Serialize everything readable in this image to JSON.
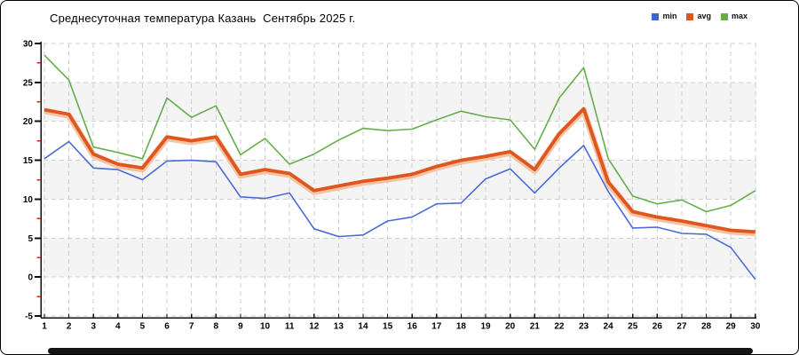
{
  "title": "Среднесуточная температура Казань  Сентябрь 2025 г.",
  "legend": {
    "items": [
      {
        "label": "min",
        "color": "#3d63d6"
      },
      {
        "label": "avg",
        "color": "#e0561f"
      },
      {
        "label": "max",
        "color": "#64ad49"
      }
    ]
  },
  "colors": {
    "min_line": "#4a6bd5",
    "avg_line": "#e0561f",
    "avg_halo": "#f3c3a3",
    "max_line": "#66ae4a",
    "band_fill": "#f4f4f4",
    "gridline": "#cfcfcf",
    "axis": "#111111",
    "minor_tick": "#cc2a1e",
    "tick_label": "#000000",
    "scrollbar": "#141414"
  },
  "chart_data": {
    "type": "line",
    "title": "Среднесуточная температура Казань  Сентябрь 2025 г.",
    "xlabel": "",
    "ylabel": "",
    "x": [
      1,
      2,
      3,
      4,
      5,
      6,
      7,
      8,
      9,
      10,
      11,
      12,
      13,
      14,
      15,
      16,
      17,
      18,
      19,
      20,
      21,
      22,
      23,
      24,
      25,
      26,
      27,
      28,
      29,
      30
    ],
    "series": [
      {
        "name": "min",
        "values": [
          15.2,
          17.4,
          14.0,
          13.8,
          12.5,
          14.9,
          15.0,
          14.8,
          10.3,
          10.1,
          10.8,
          6.2,
          5.2,
          5.4,
          7.2,
          7.7,
          9.4,
          9.5,
          12.6,
          13.9,
          10.8,
          14.0,
          16.9,
          11.0,
          6.3,
          6.4,
          5.6,
          5.5,
          3.8,
          -0.3
        ]
      },
      {
        "name": "avg",
        "values": [
          21.5,
          20.9,
          15.8,
          14.5,
          14.0,
          18.0,
          17.5,
          18.0,
          13.2,
          13.8,
          13.3,
          11.1,
          11.7,
          12.3,
          12.7,
          13.2,
          14.2,
          15.0,
          15.5,
          16.1,
          13.8,
          18.4,
          21.6,
          12.2,
          8.4,
          7.7,
          7.2,
          6.6,
          6.0,
          5.8
        ]
      },
      {
        "name": "max",
        "values": [
          28.5,
          25.3,
          16.7,
          16.0,
          15.2,
          23.0,
          20.5,
          22.0,
          15.7,
          17.8,
          14.5,
          15.8,
          17.6,
          19.1,
          18.8,
          19.0,
          20.2,
          21.3,
          20.6,
          20.2,
          16.4,
          23.0,
          26.9,
          15.2,
          10.4,
          9.4,
          9.9,
          8.4,
          9.2,
          11.1
        ]
      }
    ],
    "ylim": [
      -5,
      30
    ],
    "xlim": [
      1,
      30
    ],
    "yticks": [
      30,
      25,
      20,
      15,
      10,
      5,
      0,
      -5
    ],
    "minor_yticks": [
      27.5,
      22.5,
      17.5,
      12.5,
      7.5,
      2.5,
      -2.5
    ],
    "xticks": [
      1,
      2,
      3,
      4,
      5,
      6,
      7,
      8,
      9,
      10,
      11,
      12,
      13,
      14,
      15,
      16,
      17,
      18,
      19,
      20,
      21,
      22,
      23,
      24,
      25,
      26,
      27,
      28,
      29,
      30
    ],
    "shaded_bands": [
      [
        20,
        25
      ],
      [
        10,
        15
      ],
      [
        0,
        5
      ]
    ],
    "grid": true,
    "legend_position": "top-right"
  }
}
